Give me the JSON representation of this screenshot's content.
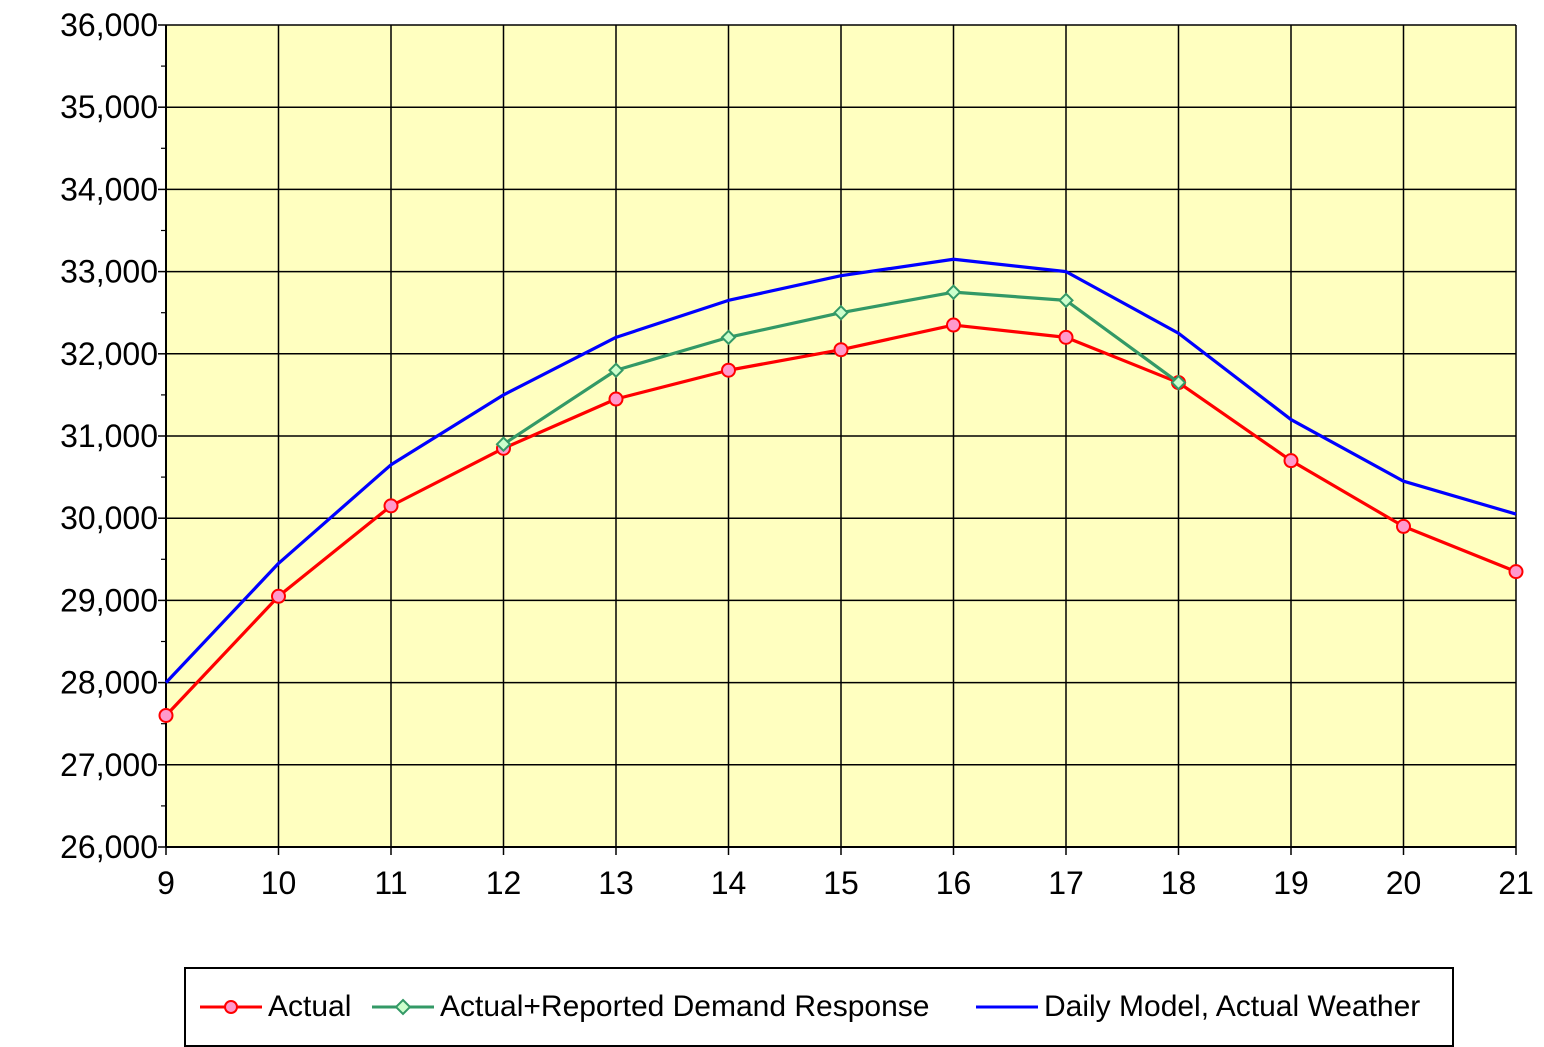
{
  "chart_data": {
    "type": "line",
    "title": "",
    "xlabel": "",
    "ylabel": "",
    "x": [
      9,
      10,
      11,
      12,
      13,
      14,
      15,
      16,
      17,
      18,
      19,
      20,
      21
    ],
    "xlim": [
      9,
      21
    ],
    "ylim": [
      26000,
      36000
    ],
    "y_major_step": 1000,
    "y_minor_step": 500,
    "x_ticks": [
      "9",
      "10",
      "11",
      "12",
      "13",
      "14",
      "15",
      "16",
      "17",
      "18",
      "19",
      "20",
      "21"
    ],
    "y_ticks": [
      "26,000",
      "27,000",
      "28,000",
      "29,000",
      "30,000",
      "31,000",
      "32,000",
      "33,000",
      "34,000",
      "35,000",
      "36,000"
    ],
    "grid": true,
    "plot_background": "#FFFFC0",
    "legend_position": "bottom",
    "series": [
      {
        "name": "Actual",
        "color": "#FF0000",
        "marker": "circle",
        "marker_fill": "#FF99CC",
        "x": [
          9,
          10,
          11,
          12,
          13,
          14,
          15,
          16,
          17,
          18,
          19,
          20,
          21
        ],
        "values": [
          27600,
          29050,
          30150,
          30850,
          31450,
          31800,
          32050,
          32350,
          32200,
          31650,
          30700,
          29900,
          29350
        ]
      },
      {
        "name": "Actual+Reported Demand Response",
        "color": "#339966",
        "marker": "diamond",
        "marker_fill": "#CCFFCC",
        "x": [
          12,
          13,
          14,
          15,
          16,
          17,
          18
        ],
        "values": [
          30900,
          31800,
          32200,
          32500,
          32750,
          32650,
          31650
        ]
      },
      {
        "name": "Daily Model, Actual Weather",
        "color": "#0000FF",
        "marker": "none",
        "x": [
          9,
          10,
          11,
          12,
          13,
          14,
          15,
          16,
          17,
          18,
          19,
          20,
          21
        ],
        "values": [
          28000,
          29450,
          30650,
          31500,
          32200,
          32650,
          32950,
          33150,
          33000,
          32250,
          31200,
          30450,
          30050
        ]
      }
    ]
  }
}
